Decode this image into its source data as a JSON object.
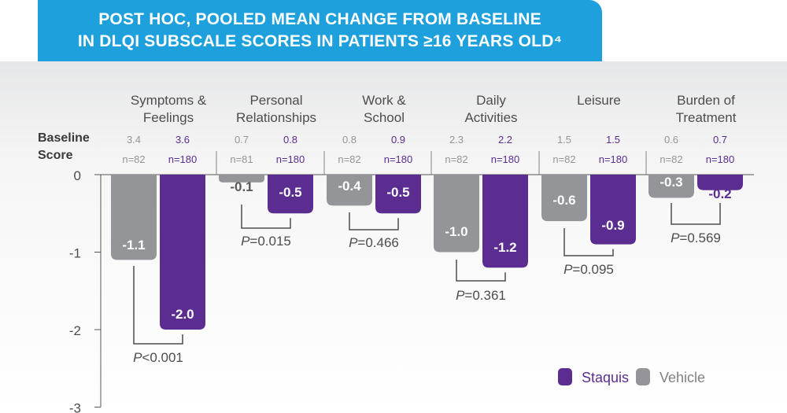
{
  "chart_data": {
    "type": "bar",
    "title": "POST HOC, POOLED MEAN CHANGE FROM BASELINE\nIN DLQI SUBSCALE SCORES IN PATIENTS ≥16 YEARS OLD⁴",
    "ylim": [
      -3,
      0
    ],
    "yticks": [
      "0",
      "-1",
      "-2",
      "-3"
    ],
    "baseline_label": "Baseline\nScore",
    "categories": [
      "Symptoms &\nFeelings",
      "Personal\nRelationships",
      "Work &\nSchool",
      "Daily\nActivities",
      "Leisure",
      "Burden of\nTreatment"
    ],
    "series": [
      {
        "name": "Vehicle",
        "color": "#939598",
        "values": [
          -1.1,
          -0.1,
          -0.4,
          -1.0,
          -0.6,
          -0.3
        ],
        "labels": [
          "-1.1",
          "-0.1",
          "-0.4",
          "-1.0",
          "-0.6",
          "-0.3"
        ],
        "baseline": [
          "3.4",
          "0.7",
          "0.8",
          "2.3",
          "1.5",
          "0.6"
        ],
        "n": [
          "n=82",
          "n=81",
          "n=82",
          "n=82",
          "n=82",
          "n=82"
        ]
      },
      {
        "name": "Staquis",
        "color": "#5b2d90",
        "values": [
          -2.0,
          -0.5,
          -0.5,
          -1.2,
          -0.9,
          -0.2
        ],
        "labels": [
          "-2.0",
          "-0.5",
          "-0.5",
          "-1.2",
          "-0.9",
          "-0.2"
        ],
        "baseline": [
          "3.6",
          "0.8",
          "0.9",
          "2.2",
          "1.5",
          "0.7"
        ],
        "n": [
          "n=180",
          "n=180",
          "n=180",
          "n=180",
          "n=180",
          "n=180"
        ]
      }
    ],
    "p_values": [
      {
        "symbol": "P",
        "value": "<0.001"
      },
      {
        "symbol": "P",
        "value": "=0.015"
      },
      {
        "symbol": "P",
        "value": "=0.466"
      },
      {
        "symbol": "P",
        "value": "=0.361"
      },
      {
        "symbol": "P",
        "value": "=0.095"
      },
      {
        "symbol": "P",
        "value": "=0.569"
      }
    ],
    "legend": {
      "placement": "bottom-right",
      "items": [
        {
          "name": "Staquis",
          "color": "#5b2d90"
        },
        {
          "name": "Vehicle",
          "color": "#939598"
        }
      ]
    }
  }
}
